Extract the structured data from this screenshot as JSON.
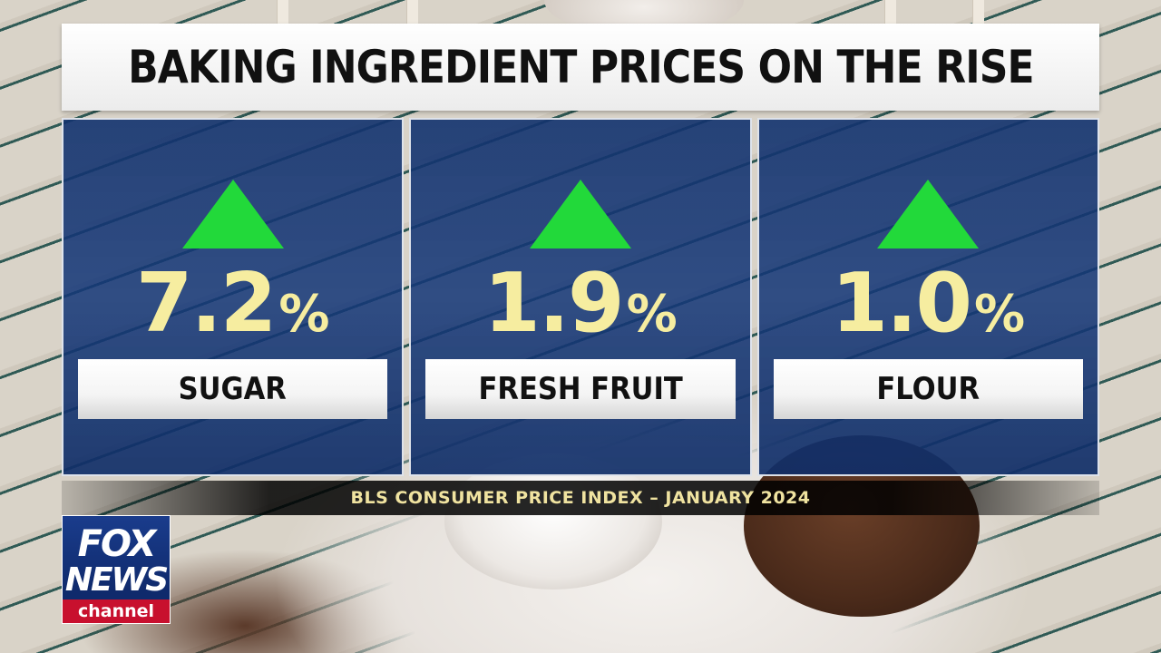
{
  "title": "BAKING INGREDIENT PRICES ON THE RISE",
  "source": "BLS CONSUMER PRICE INDEX – JANUARY 2024",
  "percent_symbol": "%",
  "colors": {
    "panel_blue": "#143878",
    "arrow_green": "#22d93a",
    "figure_yellow": "#f6eda0",
    "channel_red": "#c8102e"
  },
  "items": [
    {
      "value": "7.2",
      "label": "SUGAR",
      "trend_icon": "up-triangle-icon"
    },
    {
      "value": "1.9",
      "label": "FRESH FRUIT",
      "trend_icon": "up-triangle-icon"
    },
    {
      "value": "1.0",
      "label": "FLOUR",
      "trend_icon": "up-triangle-icon"
    }
  ],
  "logo": {
    "line1": "FOX",
    "line2": "NEWS",
    "line3": "channel"
  }
}
